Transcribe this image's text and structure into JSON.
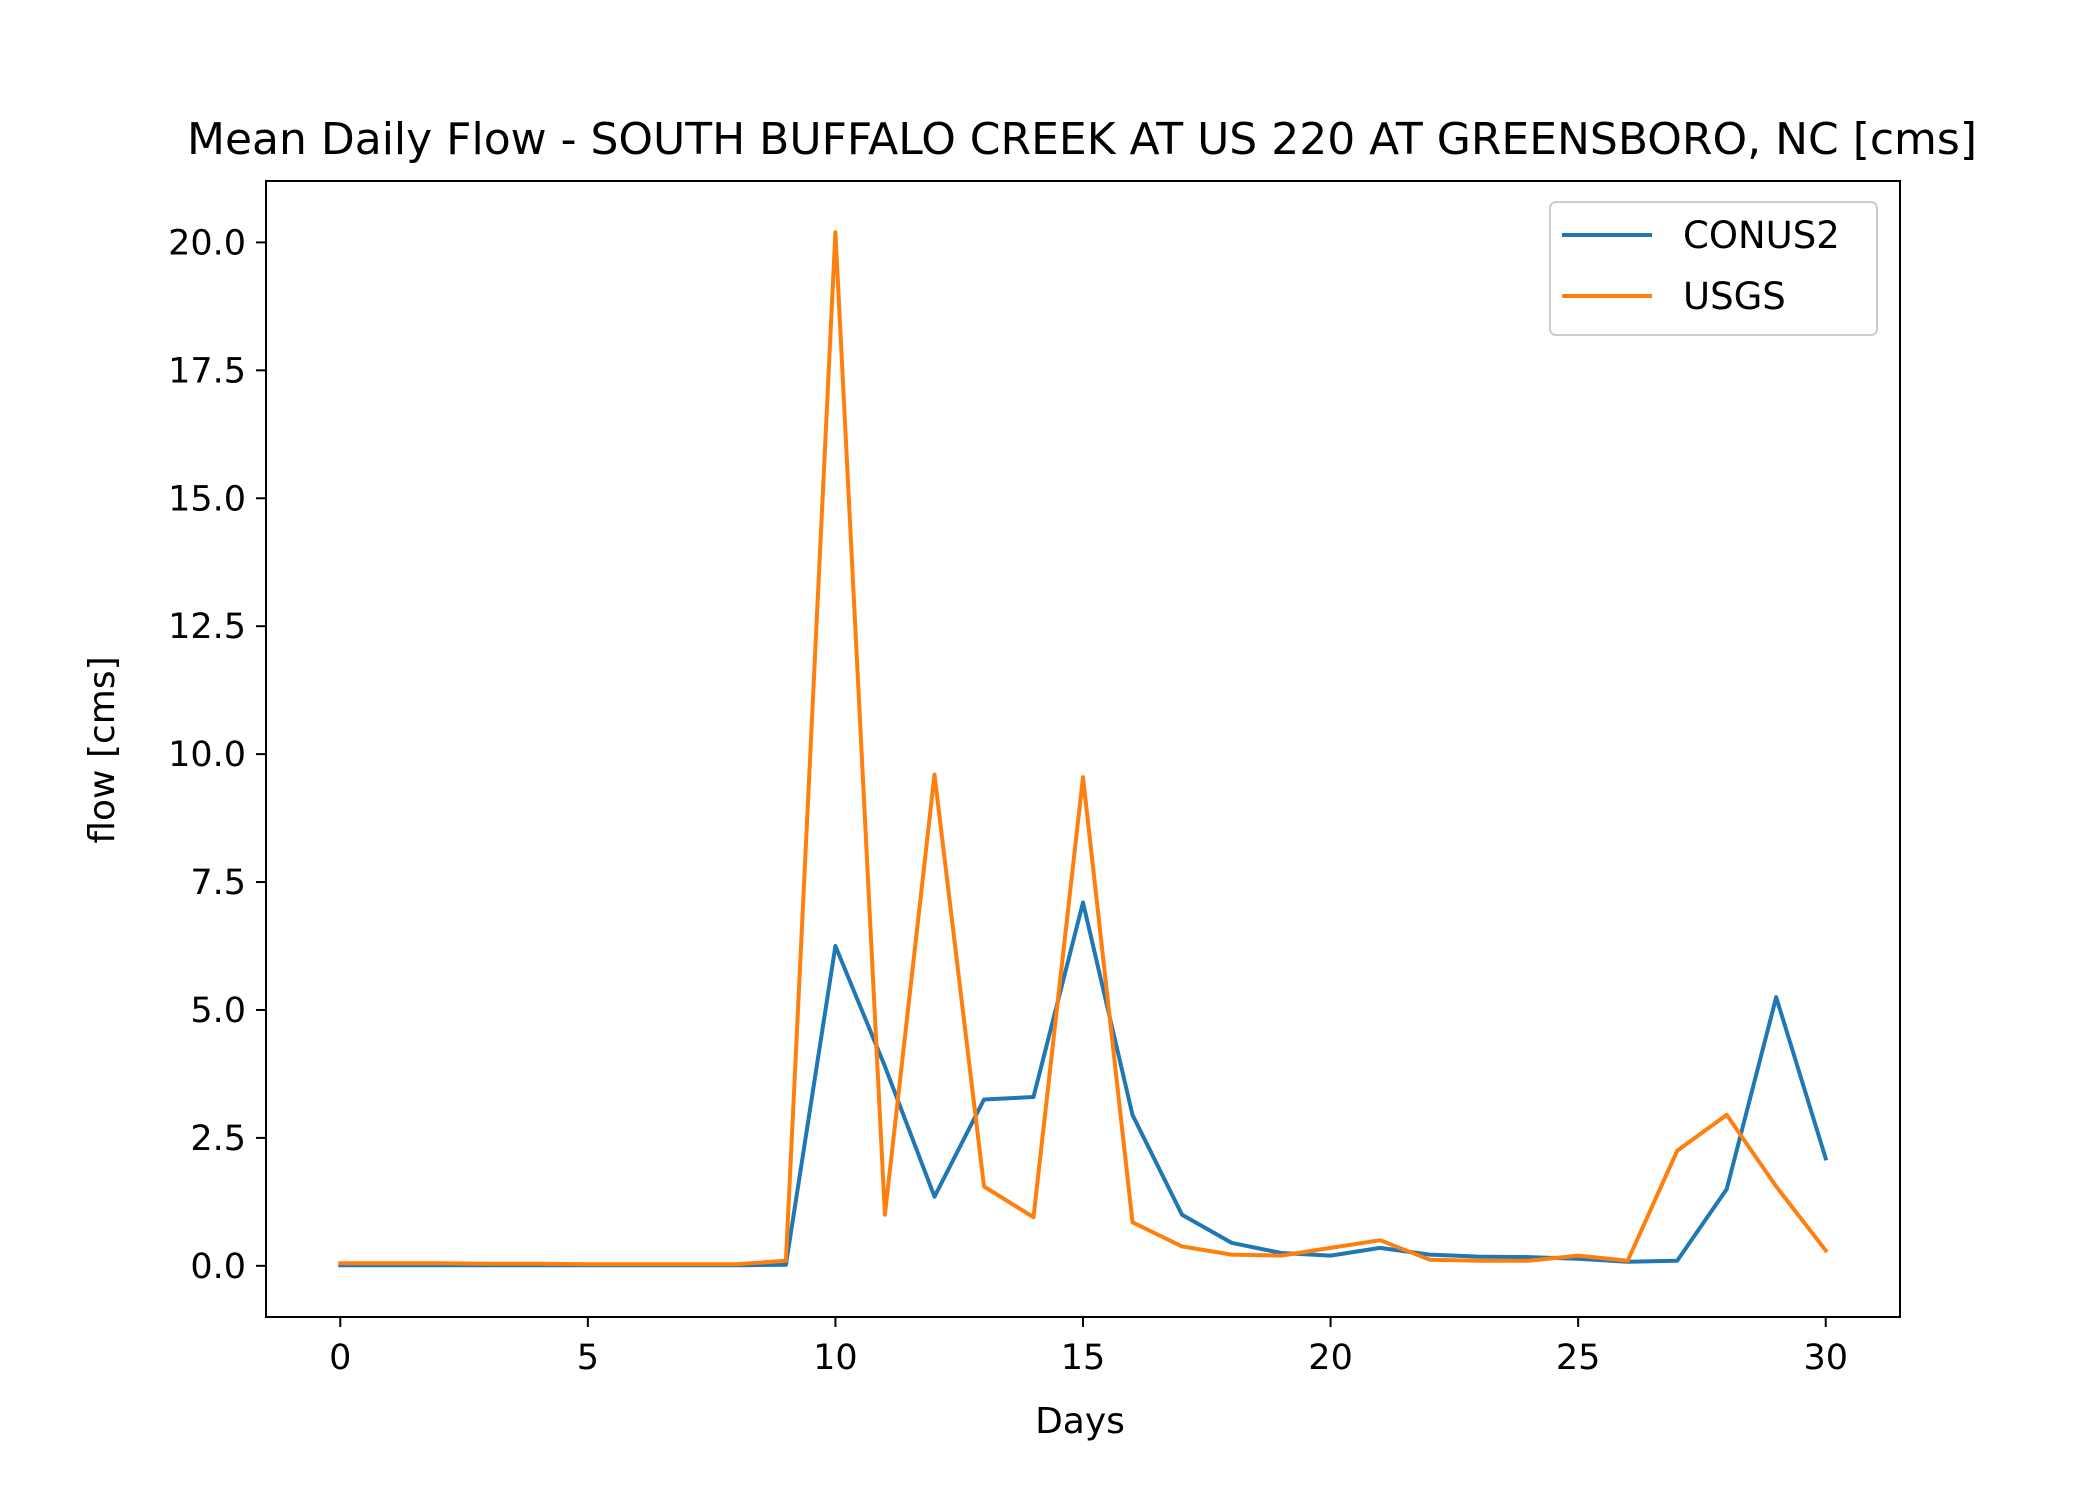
{
  "chart_data": {
    "type": "line",
    "title": "Mean Daily Flow - SOUTH BUFFALO CREEK AT US 220 AT GREENSBORO, NC [cms]",
    "xlabel": "Days",
    "ylabel": "flow [cms]",
    "xlim": [
      -1.5,
      31.5
    ],
    "ylim": [
      -1.0,
      21.2
    ],
    "xticks": [
      0,
      5,
      10,
      15,
      20,
      25,
      30
    ],
    "xtick_labels": [
      "0",
      "5",
      "10",
      "15",
      "20",
      "25",
      "30"
    ],
    "yticks": [
      0,
      2.5,
      5,
      7.5,
      10,
      12.5,
      15,
      17.5,
      20
    ],
    "ytick_labels": [
      "0.0",
      "2.5",
      "5.0",
      "7.5",
      "10.0",
      "12.5",
      "15.0",
      "17.5",
      "20.0"
    ],
    "grid": false,
    "legend_position": "top-right",
    "x": [
      0,
      1,
      2,
      3,
      4,
      5,
      6,
      7,
      8,
      9,
      10,
      11,
      12,
      13,
      14,
      15,
      16,
      17,
      18,
      19,
      20,
      21,
      22,
      23,
      24,
      25,
      26,
      27,
      28,
      29,
      30
    ],
    "series": [
      {
        "name": "CONUS2",
        "color": "#1f77b4",
        "values": [
          0.01,
          0.01,
          0.01,
          0.01,
          0.01,
          0.01,
          0.01,
          0.01,
          0.01,
          0.02,
          6.25,
          3.9,
          1.35,
          3.25,
          3.3,
          7.1,
          2.95,
          1.0,
          0.45,
          0.25,
          0.2,
          0.35,
          0.22,
          0.18,
          0.17,
          0.14,
          0.08,
          0.1,
          1.5,
          5.25,
          2.1
        ]
      },
      {
        "name": "USGS",
        "color": "#ff7f0e",
        "values": [
          0.05,
          0.05,
          0.05,
          0.04,
          0.04,
          0.03,
          0.03,
          0.03,
          0.03,
          0.1,
          20.2,
          1.0,
          9.6,
          1.55,
          0.95,
          9.55,
          0.85,
          0.38,
          0.22,
          0.2,
          0.35,
          0.5,
          0.12,
          0.1,
          0.1,
          0.2,
          0.1,
          2.25,
          2.95,
          1.55,
          0.3
        ]
      }
    ]
  }
}
